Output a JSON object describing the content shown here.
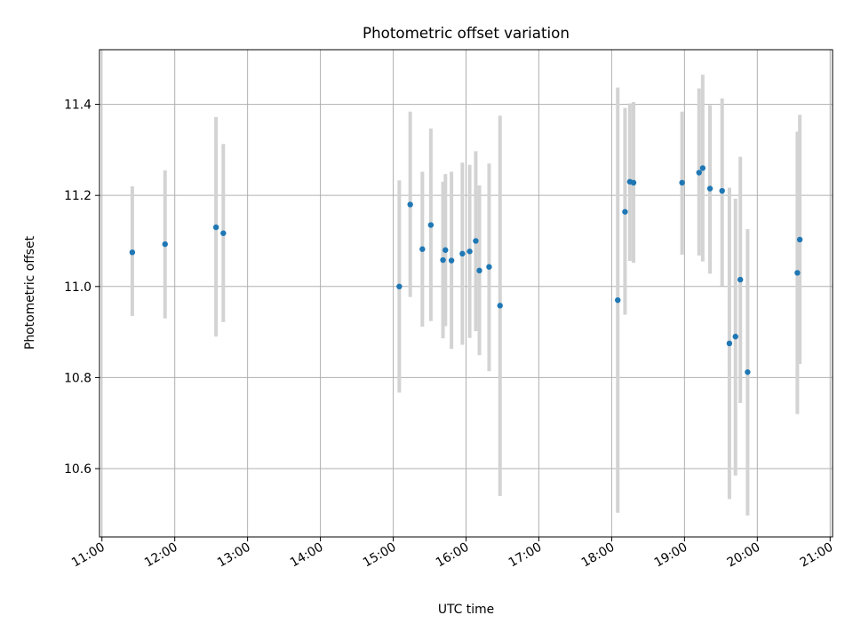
{
  "chart_data": {
    "type": "scatter",
    "title": "Photometric offset variation",
    "xlabel": "UTC time",
    "ylabel": "Photometric offset",
    "xlim": [
      "10:58",
      "21:02"
    ],
    "ylim": [
      10.45,
      11.52
    ],
    "grid": true,
    "x_ticks": [
      "11:00",
      "12:00",
      "13:00",
      "14:00",
      "15:00",
      "16:00",
      "17:00",
      "18:00",
      "19:00",
      "20:00",
      "21:00"
    ],
    "y_ticks": [
      10.6,
      10.8,
      11.0,
      11.2,
      11.4
    ],
    "error_bar_color": "#d3d3d3",
    "marker_color": "#1f77b4",
    "points": [
      {
        "x": "11:25",
        "y": 11.075,
        "lo": 10.935,
        "hi": 11.22
      },
      {
        "x": "11:52",
        "y": 11.093,
        "lo": 10.93,
        "hi": 11.255
      },
      {
        "x": "12:34",
        "y": 11.13,
        "lo": 10.89,
        "hi": 11.372
      },
      {
        "x": "12:40",
        "y": 11.117,
        "lo": 10.922,
        "hi": 11.313
      },
      {
        "x": "15:05",
        "y": 11.0,
        "lo": 10.767,
        "hi": 11.233
      },
      {
        "x": "15:14",
        "y": 11.18,
        "lo": 10.977,
        "hi": 11.384
      },
      {
        "x": "15:24",
        "y": 11.082,
        "lo": 10.912,
        "hi": 11.252
      },
      {
        "x": "15:31",
        "y": 11.135,
        "lo": 10.924,
        "hi": 11.347
      },
      {
        "x": "15:41",
        "y": 11.058,
        "lo": 10.886,
        "hi": 11.23
      },
      {
        "x": "15:43",
        "y": 11.08,
        "lo": 10.913,
        "hi": 11.247
      },
      {
        "x": "15:48",
        "y": 11.057,
        "lo": 10.863,
        "hi": 11.252
      },
      {
        "x": "15:57",
        "y": 11.072,
        "lo": 10.872,
        "hi": 11.272
      },
      {
        "x": "16:03",
        "y": 11.077,
        "lo": 10.887,
        "hi": 11.267
      },
      {
        "x": "16:08",
        "y": 11.1,
        "lo": 10.902,
        "hi": 11.297
      },
      {
        "x": "16:11",
        "y": 11.035,
        "lo": 10.849,
        "hi": 11.222
      },
      {
        "x": "16:19",
        "y": 11.043,
        "lo": 10.814,
        "hi": 11.27
      },
      {
        "x": "16:28",
        "y": 10.958,
        "lo": 10.54,
        "hi": 11.375
      },
      {
        "x": "18:05",
        "y": 10.97,
        "lo": 10.503,
        "hi": 11.437
      },
      {
        "x": "18:11",
        "y": 11.164,
        "lo": 10.938,
        "hi": 11.392
      },
      {
        "x": "18:15",
        "y": 11.23,
        "lo": 11.056,
        "hi": 11.402
      },
      {
        "x": "18:18",
        "y": 11.228,
        "lo": 11.052,
        "hi": 11.405
      },
      {
        "x": "18:58",
        "y": 11.228,
        "lo": 11.07,
        "hi": 11.384
      },
      {
        "x": "19:12",
        "y": 11.25,
        "lo": 11.068,
        "hi": 11.435
      },
      {
        "x": "19:15",
        "y": 11.26,
        "lo": 11.055,
        "hi": 11.465
      },
      {
        "x": "19:21",
        "y": 11.215,
        "lo": 11.028,
        "hi": 11.398
      },
      {
        "x": "19:31",
        "y": 11.21,
        "lo": 11.001,
        "hi": 11.413
      },
      {
        "x": "19:37",
        "y": 10.875,
        "lo": 10.533,
        "hi": 11.217
      },
      {
        "x": "19:42",
        "y": 10.89,
        "lo": 10.585,
        "hi": 11.193
      },
      {
        "x": "19:46",
        "y": 11.015,
        "lo": 10.744,
        "hi": 11.285
      },
      {
        "x": "19:52",
        "y": 10.812,
        "lo": 10.497,
        "hi": 11.126
      },
      {
        "x": "20:33",
        "y": 11.03,
        "lo": 10.72,
        "hi": 11.34
      },
      {
        "x": "20:35",
        "y": 11.103,
        "lo": 10.83,
        "hi": 11.377
      }
    ]
  }
}
